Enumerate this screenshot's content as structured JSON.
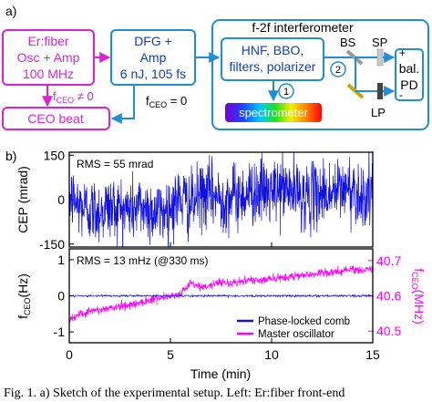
{
  "panel_a": {
    "label": "a)",
    "osc_box": [
      "Er:fiber",
      "Osc + Amp",
      "100 MHz"
    ],
    "dfg_box": [
      "DFG +",
      "Amp",
      "6 nJ, 105 fs"
    ],
    "fceo_nonzero": {
      "main": "f",
      "sub": "CEO",
      "rest": " ≠ 0"
    },
    "fceo_zero": {
      "main": "f",
      "sub": "CEO",
      "rest": " = 0"
    },
    "ceo_beat": "CEO beat",
    "interferometer_title": "f-2f interferometer",
    "hnf_box": [
      "HNF, BBO,",
      "filters, polarizer"
    ],
    "spectrometer": "spectrometer",
    "path_1": "1",
    "path_2": "2",
    "bs": "BS",
    "sp": "SP",
    "lp": "LP",
    "pd_plus": "+",
    "pd_minus": "-",
    "pd_box": [
      "bal.",
      "PD"
    ],
    "colors": {
      "magenta": "#e020d8",
      "blue": "#1e8fd6",
      "dark_blue": "#1030c0"
    }
  },
  "panel_b": {
    "label": "b)"
  },
  "chart_data": [
    {
      "type": "line",
      "ylabel": "CEP (mrad)",
      "annotation": "RMS = 55 mrad",
      "ylim": [
        -160,
        160
      ],
      "yticks": [
        -150,
        0,
        150
      ],
      "xlim": [
        0,
        15
      ],
      "series": [
        {
          "color": "#1010e0",
          "x": [
            0,
            0.5,
            1,
            1.5,
            2,
            2.5,
            3,
            3.5,
            4,
            4.5,
            5,
            5.5,
            6,
            6.5,
            7,
            7.5,
            8,
            8.5,
            9,
            9.5,
            10,
            10.5,
            11,
            11.5,
            12,
            12.5,
            13,
            13.5,
            14,
            14.5,
            15
          ],
          "values": [
            10,
            -20,
            -35,
            -40,
            -25,
            -30,
            -35,
            -20,
            -35,
            -45,
            -25,
            5,
            -20,
            15,
            20,
            0,
            10,
            15,
            25,
            30,
            20,
            40,
            30,
            15,
            10,
            25,
            20,
            35,
            40,
            10,
            20
          ],
          "noise_rms": 55
        }
      ]
    },
    {
      "type": "line",
      "ylabel_main": "f",
      "ylabel_sub": "CEO",
      "ylabel_unit": "(Hz)",
      "y2label_main": "f",
      "y2label_sub": "CEO",
      "y2label_unit": "(MHz)",
      "annotation": "RMS = 13 mHz (@330 ms)",
      "xlabel": "Time (min)",
      "xlim": [
        0,
        15
      ],
      "xticks": [
        0,
        5,
        10,
        15
      ],
      "ylim": [
        -1.3,
        1.3
      ],
      "yticks": [
        -1,
        0,
        1
      ],
      "y2lim": [
        40.467,
        40.733
      ],
      "y2ticks": [
        40.5,
        40.6,
        40.7
      ],
      "y2ticklabels": [
        "40.5",
        "40.6",
        "40.7"
      ],
      "series": [
        {
          "name": "Phase-locked comb",
          "color": "#1010e0",
          "axis": "left",
          "x": [
            0,
            15
          ],
          "values": [
            0.0,
            0.0
          ],
          "noise_rms": 0.013
        },
        {
          "name": "Master oscillator",
          "color": "#ff00ff",
          "axis": "right",
          "x": [
            0,
            0.5,
            1,
            1.5,
            2,
            2.5,
            3,
            3.5,
            4,
            4.5,
            5,
            5.5,
            6,
            6.5,
            7,
            7.5,
            8,
            8.5,
            9,
            9.5,
            10,
            10.5,
            11,
            11.5,
            12,
            12.5,
            13,
            13.5,
            14,
            14.5,
            15
          ],
          "values": [
            40.535,
            40.545,
            40.555,
            40.56,
            40.565,
            40.57,
            40.575,
            40.58,
            40.59,
            40.595,
            40.6,
            40.605,
            40.635,
            40.625,
            40.63,
            40.64,
            40.635,
            40.64,
            40.645,
            40.645,
            40.65,
            40.65,
            40.655,
            40.66,
            40.66,
            40.665,
            40.665,
            40.67,
            40.675,
            40.67,
            40.68
          ],
          "noise_rms": 0.006
        }
      ]
    }
  ],
  "caption": "Fig. 1. a) Sketch of the experimental setup. Left: Er:fiber front-end"
}
